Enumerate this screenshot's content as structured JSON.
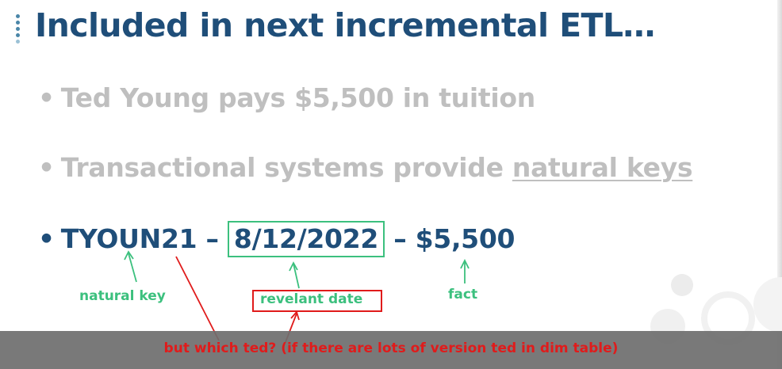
{
  "title": "Included in next incremental ETL…",
  "bullets": {
    "b1": "Ted Young pays $5,500 in tuition",
    "b2_prefix": "Transactional systems provide ",
    "b2_link": "natural keys",
    "b3_key": "TYOUN21",
    "b3_sep1": " – ",
    "b3_date": "8/12/2022",
    "b3_sep2": " – ",
    "b3_amount": "$5,500"
  },
  "annotations": {
    "natural_key": "natural key",
    "relevant_date": "revelant date",
    "fact": "fact"
  },
  "caption": "but which ted? (if there are lots of version ted in dim table)",
  "colors": {
    "title": "#1f4e79",
    "dim_text": "#bfbfbf",
    "annotation_green": "#3cc07e",
    "annotation_red": "#e01b1b",
    "caption_bar": "#6e6e6e"
  }
}
